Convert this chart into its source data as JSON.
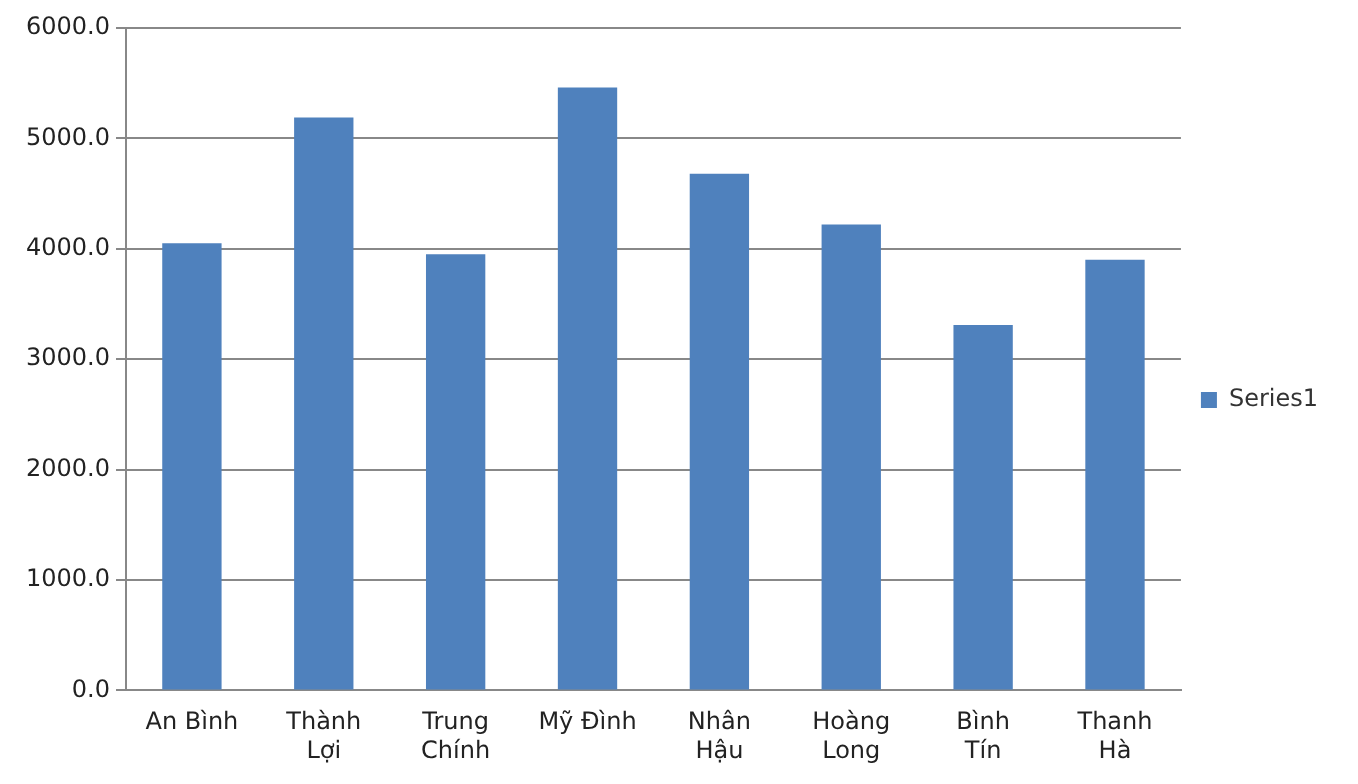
{
  "chart_data": {
    "type": "bar",
    "categories": [
      "An Bình",
      "Thành Lợi",
      "Trung Chính",
      "Mỹ Đình",
      "Nhân Hậu",
      "Hoàng Long",
      "Bình Tín",
      "Thanh Hà"
    ],
    "series": [
      {
        "name": "Series1",
        "color": "#4f81bd",
        "values": [
          4050,
          5190,
          3950,
          5460,
          4680,
          4220,
          3310,
          3900
        ]
      }
    ],
    "ylim": [
      0,
      6000
    ],
    "yticks": [
      {
        "value": 0,
        "label": "0.0"
      },
      {
        "value": 1000,
        "label": "1000.0"
      },
      {
        "value": 2000,
        "label": "2000.0"
      },
      {
        "value": 3000,
        "label": "3000.0"
      },
      {
        "value": 4000,
        "label": "4000.0"
      },
      {
        "value": 5000,
        "label": "5000.0"
      },
      {
        "value": 6000,
        "label": "6000.0"
      }
    ],
    "grid": "y",
    "legend": "right"
  }
}
